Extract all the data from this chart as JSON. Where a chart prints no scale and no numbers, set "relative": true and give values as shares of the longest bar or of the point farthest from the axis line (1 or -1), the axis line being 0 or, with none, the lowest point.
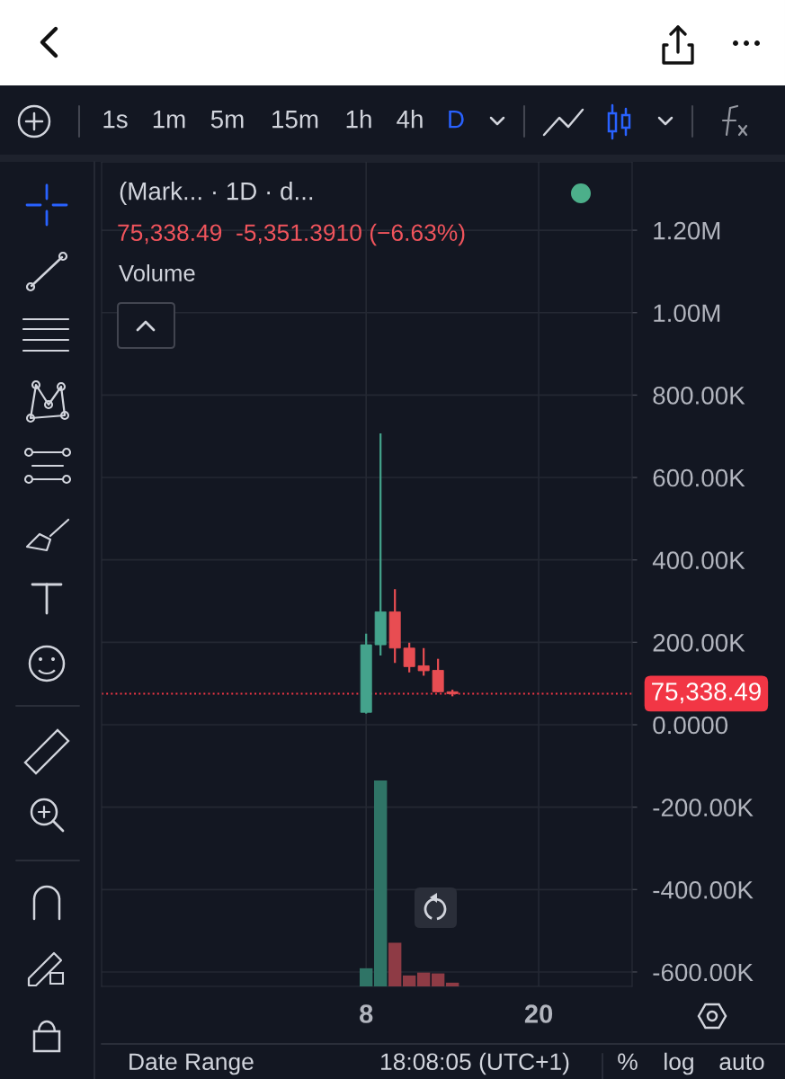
{
  "chart_data": [
    {
      "type": "candlestick",
      "title": "(Mark... · 1D · d...",
      "subtitle": "75,338.49  -5,351.3910 (−6.63%)",
      "x": [
        8,
        9,
        10,
        11,
        12,
        13,
        14
      ],
      "ohlc": [
        [
          30000,
          221000,
          27000,
          194000
        ],
        [
          194000,
          707000,
          168000,
          274000
        ],
        [
          274000,
          329000,
          150000,
          186000
        ],
        [
          186000,
          199000,
          127000,
          141000
        ],
        [
          143000,
          186000,
          119000,
          131000
        ],
        [
          132000,
          160000,
          79000,
          80000
        ],
        [
          80000,
          85000,
          69000,
          75338.49
        ]
      ],
      "colors": [
        "#44a38c",
        "#44a38c",
        "#e84d52",
        "#e84d52",
        "#e84d52",
        "#e84d52",
        "#e84d52"
      ],
      "xlim": [
        -10.4,
        26.5
      ],
      "xticks": [
        8,
        20
      ],
      "ylim": [
        -635000,
        1366000
      ],
      "yticks": [
        {
          "value": 1200000,
          "label": "1.20M"
        },
        {
          "value": 1000000,
          "label": "1.00M"
        },
        {
          "value": 800000,
          "label": "800.00K"
        },
        {
          "value": 600000,
          "label": "600.00K"
        },
        {
          "value": 400000,
          "label": "400.00K"
        },
        {
          "value": 200000,
          "label": "200.00K"
        },
        {
          "value": 0,
          "label": "0.0000"
        },
        {
          "value": -200000,
          "label": "-200.00K"
        },
        {
          "value": -400000,
          "label": "-400.00K"
        },
        {
          "value": -600000,
          "label": "-600.00K"
        }
      ],
      "grid": true,
      "ref_lines": [
        {
          "axis": "y",
          "value": 75338.49,
          "label": "75,338.49",
          "color": "#f23645",
          "line_style": "dotted"
        }
      ],
      "annotations": [
        "Volume",
        "1s",
        "1m",
        "5m",
        "15m",
        "1h",
        "4h",
        "D",
        "Date Range",
        "18:08:05 (UTC+1)",
        "%",
        "log",
        "auto"
      ]
    },
    {
      "type": "bar",
      "relative": true,
      "x": [
        8,
        9,
        10,
        11,
        12,
        13,
        14
      ],
      "values": [
        0.088,
        1,
        0.212,
        0.053,
        0.067,
        0.063,
        0.018
      ],
      "colors": [
        "#2f7466",
        "#2f7466",
        "#8e3b45",
        "#8e3b45",
        "#8e3b45",
        "#8e3b45",
        "#8e3b45"
      ],
      "xlim": [
        -10.4,
        26.5
      ],
      "tick_labels": false
    }
  ]
}
